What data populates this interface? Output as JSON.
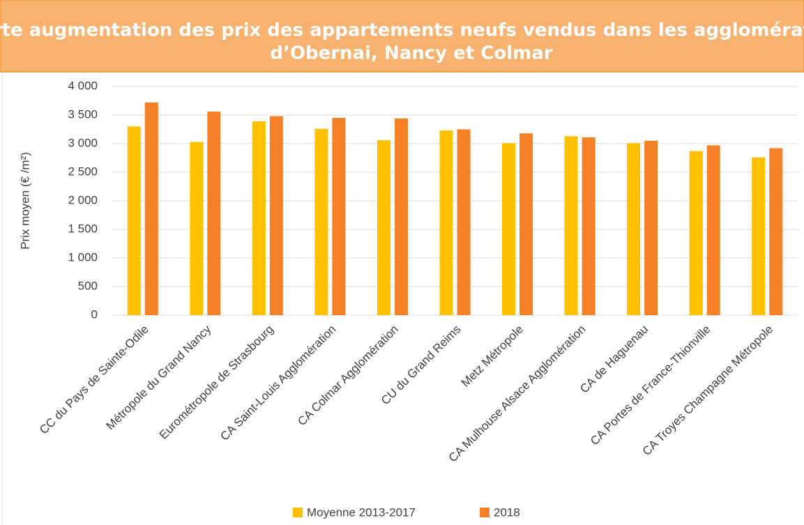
{
  "chart_data": {
    "type": "bar",
    "title": [
      "Forte augmentation des prix des appartements neufs vendus dans les agglomérations",
      "d’Obernai, Nancy et Colmar"
    ],
    "y_label": "Prix moyen (€ /m²)",
    "categories": [
      "CC du Pays de Sainte-Odile",
      "Métropole du Grand Nancy",
      "Eurométropole de Strasbourg",
      "CA Saint-Louis Agglomération",
      "CA Colmar Agglomération",
      "CU du Grand Reims",
      "Metz Métropole",
      "CA Mulhouse Alsace Agglomération",
      "CA de Haguenau",
      "CA Portes de France-Thionville",
      "CA Troyes Champagne Métropole"
    ],
    "series": [
      {
        "name": "Moyenne 2013-2017",
        "color": "#FFC000",
        "values": [
          3300,
          3030,
          3390,
          3260,
          3060,
          3230,
          3010,
          3130,
          3010,
          2870,
          2760
        ]
      },
      {
        "name": "2018",
        "color": "#F58025",
        "values": [
          3720,
          3560,
          3480,
          3450,
          3440,
          3250,
          3180,
          3110,
          3050,
          2970,
          2920
        ]
      }
    ],
    "ylim": [
      0,
      4000
    ],
    "yticks": [
      0,
      500,
      {
        "value": 1000,
        "label": "1 000"
      },
      {
        "value": 1500,
        "label": "1 500"
      },
      {
        "value": 2000,
        "label": "2 000"
      },
      {
        "value": 2500,
        "label": "2 500"
      },
      {
        "value": 3000,
        "label": "3 000"
      },
      {
        "value": 3500,
        "label": "3 500"
      },
      {
        "value": 4000,
        "label": "4 000"
      }
    ],
    "grid": true,
    "legend": "bottom"
  }
}
